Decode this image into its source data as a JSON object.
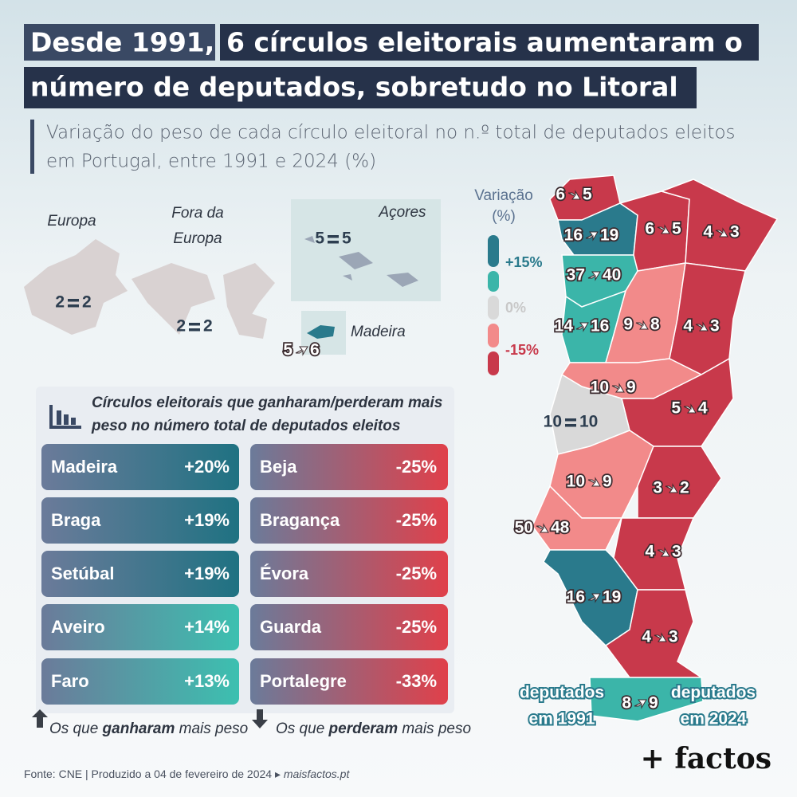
{
  "header": {
    "title_highlight": "Desde 1991,",
    "title_line1": "6 círculos eleitorais aumentaram o",
    "title_line2": "número de deputados, sobretudo no Litoral",
    "subtitle_line1": "Variação do peso de cada círculo eleitoral no n.º total de deputados eleitos",
    "subtitle_line2": "em Portugal, entre 1991 e 2024 (%)"
  },
  "insets": [
    {
      "label": "Europa",
      "from": 2,
      "to": 2
    },
    {
      "label_line1": "Fora da",
      "label_line2": "Europa",
      "from": 2,
      "to": 2
    },
    {
      "label": "Açores",
      "from": 5,
      "to": 5
    },
    {
      "label": "Madeira",
      "from": 5,
      "to": 6
    }
  ],
  "legend": {
    "title_line1": "Variação",
    "title_line2": "(%)",
    "items": [
      {
        "label": "+15%",
        "color": "#2a7a8c"
      },
      {
        "label": null,
        "color": "#3bb5a9"
      },
      {
        "label": "0%",
        "color": "#d9d9d9"
      },
      {
        "label": null,
        "color": "#f28a8a"
      },
      {
        "label": "-15%",
        "color": "#c8394b"
      }
    ]
  },
  "districts": [
    {
      "from": 6,
      "to": 5,
      "color": "#c8394b"
    },
    {
      "from": 16,
      "to": 19,
      "color": "#2a7a8c"
    },
    {
      "from": 6,
      "to": 5,
      "color": "#c8394b"
    },
    {
      "from": 4,
      "to": 3,
      "color": "#c8394b"
    },
    {
      "from": 37,
      "to": 40,
      "color": "#3bb5a9"
    },
    {
      "from": 14,
      "to": 16,
      "color": "#3bb5a9"
    },
    {
      "from": 9,
      "to": 8,
      "color": "#f28a8a"
    },
    {
      "from": 4,
      "to": 3,
      "color": "#c8394b"
    },
    {
      "from": 10,
      "to": 9,
      "color": "#f28a8a"
    },
    {
      "from": 5,
      "to": 4,
      "color": "#c8394b"
    },
    {
      "from": 10,
      "to": 10,
      "color": "#d9d9d9"
    },
    {
      "from": 10,
      "to": 9,
      "color": "#f28a8a"
    },
    {
      "from": 3,
      "to": 2,
      "color": "#c8394b"
    },
    {
      "from": 50,
      "to": 48,
      "color": "#f28a8a"
    },
    {
      "from": 4,
      "to": 3,
      "color": "#c8394b"
    },
    {
      "from": 16,
      "to": 19,
      "color": "#2a7a8c"
    },
    {
      "from": 4,
      "to": 3,
      "color": "#c8394b"
    },
    {
      "from": 8,
      "to": 9,
      "color": "#3bb5a9"
    }
  ],
  "map_notes": {
    "left_line1": "deputados",
    "left_line2": "em 1991",
    "right_line1": "deputados",
    "right_line2": "em 2024"
  },
  "table": {
    "title_line1": "Círculos eleitorais que ganharam/perderam mais",
    "title_line2": "peso no número total de deputados eleitos",
    "gained": [
      {
        "name": "Madeira",
        "value": "+20%"
      },
      {
        "name": "Braga",
        "value": "+19%"
      },
      {
        "name": "Setúbal",
        "value": "+19%"
      },
      {
        "name": "Aveiro",
        "value": "+14%"
      },
      {
        "name": "Faro",
        "value": "+13%"
      }
    ],
    "lost": [
      {
        "name": "Beja",
        "value": "-25%"
      },
      {
        "name": "Bragança",
        "value": "-25%"
      },
      {
        "name": "Évora",
        "value": "-25%"
      },
      {
        "name": "Guarda",
        "value": "-25%"
      },
      {
        "name": "Portalegre",
        "value": "-33%"
      }
    ],
    "note_gained": [
      "Os que ",
      "ganharam",
      " mais peso"
    ],
    "note_lost": [
      "Os que ",
      "perderam",
      " mais peso"
    ]
  },
  "footer": {
    "source": "Fonte: CNE  |  Produzido a 04 de fevereiro de 2024 ▸",
    "site": "maisfactos.pt",
    "logo": "+ factos"
  }
}
